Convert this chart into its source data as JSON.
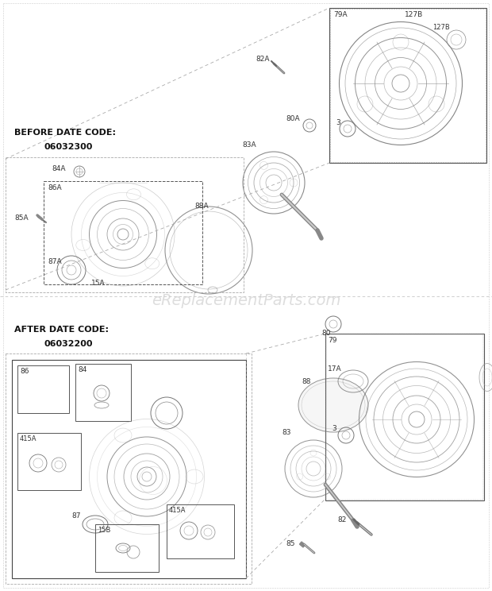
{
  "bg_color": "#ffffff",
  "line_color": "#555555",
  "dark_line": "#333333",
  "light_line": "#888888",
  "dashed_color": "#999999",
  "text_color": "#111111",
  "watermark": "eReplacementParts.com",
  "watermark_color": "#cccccc",
  "watermark_fontsize": 14,
  "before_label": "BEFORE DATE CODE:",
  "before_code": "06032300",
  "after_label": "AFTER DATE CODE:",
  "after_code": "06032200"
}
